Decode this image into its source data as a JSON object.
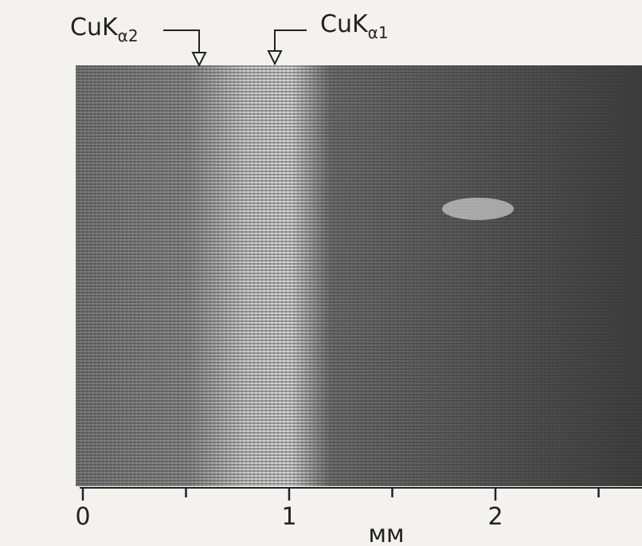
{
  "labels": [
    {
      "main": "CuK",
      "sub": "α2"
    },
    {
      "main": "CuK",
      "sub": "α1"
    }
  ],
  "scale": {
    "ticks": [
      {
        "value": 0,
        "label": "0"
      },
      0.5,
      {
        "value": 1,
        "label": "1"
      },
      1.5,
      {
        "value": 2,
        "label": "2"
      },
      2.5
    ],
    "unit": "мм"
  }
}
